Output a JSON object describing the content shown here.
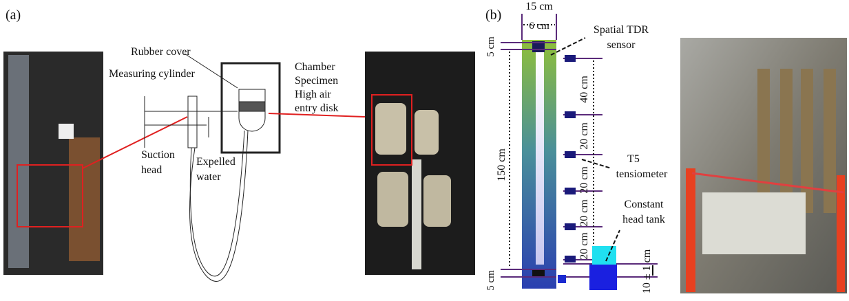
{
  "panel_a": {
    "label": "(a)",
    "rubber_cover": "Rubber cover",
    "measuring_cylinder": "Measuring cylinder",
    "chamber": "Chamber",
    "specimen": "Specimen",
    "disk": [
      "High air",
      "entry disk"
    ],
    "suction_head": [
      "Suction",
      "head"
    ],
    "expelled_water": [
      "Expelled",
      "water"
    ]
  },
  "panel_b": {
    "label": "(b)",
    "width_outer": "15 cm",
    "width_inner": "6 cm",
    "tdr_sensor": [
      "Spatial TDR",
      "sensor"
    ],
    "top_gap": "5 cm",
    "spacing_1": "40 cm",
    "spacing_2": "20 cm",
    "tensiometer": [
      "T5",
      "tensiometer"
    ],
    "height": "150 cm",
    "spacing_3": "20 cm",
    "spacing_4": "20 cm",
    "spacing_5": "20 cm",
    "tank": [
      "Constant",
      "head tank"
    ],
    "tank_level": "10 ± 1 cm",
    "bottom_gap": "5 cm"
  }
}
